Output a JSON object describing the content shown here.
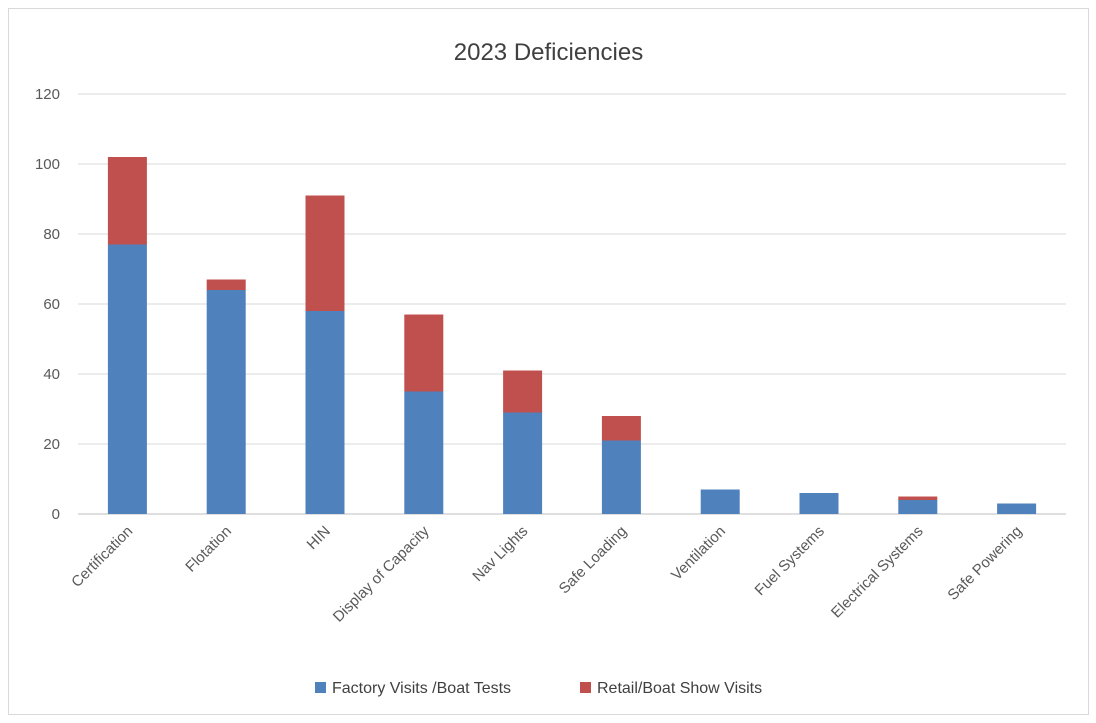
{
  "chart_data": {
    "type": "bar",
    "stacked": true,
    "title": "2023 Deficiencies",
    "xlabel": "",
    "ylabel": "",
    "ylim": [
      0,
      120
    ],
    "yticks": [
      0,
      20,
      40,
      60,
      80,
      100,
      120
    ],
    "grid": true,
    "legend": "bottom",
    "categories": [
      "Certification",
      "Flotation",
      "HIN",
      "Display of Capacity",
      "Nav Lights",
      "Safe Loading",
      "Ventilation",
      "Fuel Systems",
      "Electrical Systems",
      "Safe Powering"
    ],
    "series": [
      {
        "name": "Factory Visits /Boat Tests",
        "color": "#4f81bd",
        "values": [
          77,
          64,
          58,
          35,
          29,
          21,
          7,
          6,
          4,
          3
        ]
      },
      {
        "name": "Retail/Boat Show Visits",
        "color": "#c0504d",
        "values": [
          25,
          3,
          33,
          22,
          12,
          7,
          0,
          0,
          1,
          0
        ]
      }
    ]
  }
}
